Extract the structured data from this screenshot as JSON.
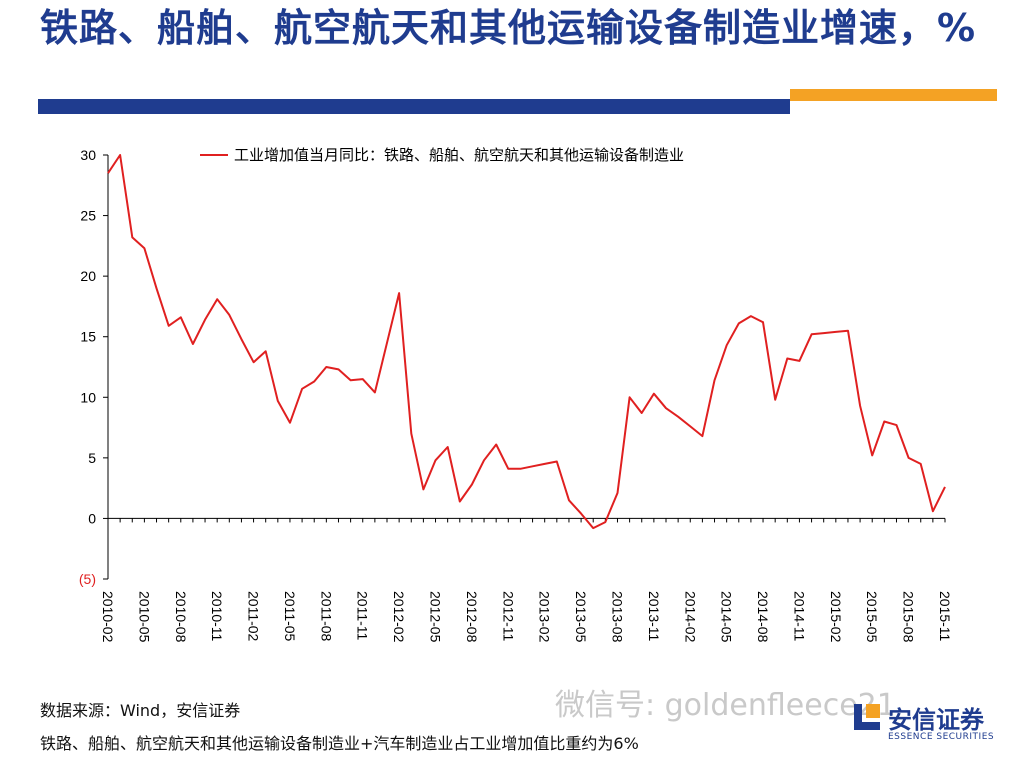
{
  "title": "铁路、船舶、航空航天和其他运输设备制造业增速，%",
  "source": "数据来源：Wind，安信证券",
  "footnote": "铁路、船舶、航空航天和其他运输设备制造业+汽车制造业占工业增加值比重约为6%",
  "watermark": "微信号: goldenfleece21",
  "logo": {
    "name": "安信证券",
    "english": "ESSENCE SECURITIES",
    "color": "#1f3c8f"
  },
  "colors": {
    "title": "#1f3c8f",
    "bar_blue": "#1f3c8f",
    "bar_orange": "#f4a224",
    "series": "#e02020"
  },
  "chart_data": {
    "type": "line",
    "ylim": [
      -5,
      30
    ],
    "yticks": [
      30,
      25,
      20,
      15,
      10,
      5,
      0,
      -5
    ],
    "ytick_labels": [
      "30",
      "25",
      "20",
      "15",
      "10",
      "5",
      "0",
      "(5)"
    ],
    "x_tick_labels": [
      "2010-02",
      "2010-05",
      "2010-08",
      "2010-11",
      "2011-02",
      "2011-05",
      "2011-08",
      "2011-11",
      "2012-02",
      "2012-05",
      "2012-08",
      "2012-11",
      "2013-02",
      "2013-05",
      "2013-08",
      "2013-11",
      "2014-02",
      "2014-05",
      "2014-08",
      "2014-11",
      "2015-02",
      "2015-05",
      "2015-08",
      "2015-11"
    ],
    "legend_position": "top",
    "series": [
      {
        "name": "工业增加值当月同比：铁路、船舶、航空航天和其他运输设备制造业",
        "values": [
          28.5,
          30.0,
          23.2,
          22.3,
          19.0,
          15.9,
          16.6,
          14.4,
          16.4,
          18.1,
          16.8,
          14.8,
          12.9,
          13.8,
          9.7,
          7.9,
          10.7,
          11.3,
          12.5,
          12.3,
          11.4,
          11.5,
          10.4,
          14.5,
          18.6,
          7.0,
          2.4,
          4.8,
          5.9,
          1.4,
          2.8,
          4.8,
          6.1,
          4.1,
          4.1,
          4.3,
          4.5,
          4.7,
          1.5,
          0.4,
          -0.8,
          -0.3,
          2.1,
          10.0,
          8.7,
          10.3,
          9.1,
          8.4,
          7.6,
          6.8,
          11.4,
          14.3,
          16.1,
          16.7,
          16.2,
          9.8,
          13.2,
          13.0,
          15.2,
          15.3,
          15.4,
          15.5,
          9.3,
          5.2,
          8.0,
          7.7,
          5.0,
          4.5,
          0.6,
          2.6
        ]
      }
    ]
  }
}
